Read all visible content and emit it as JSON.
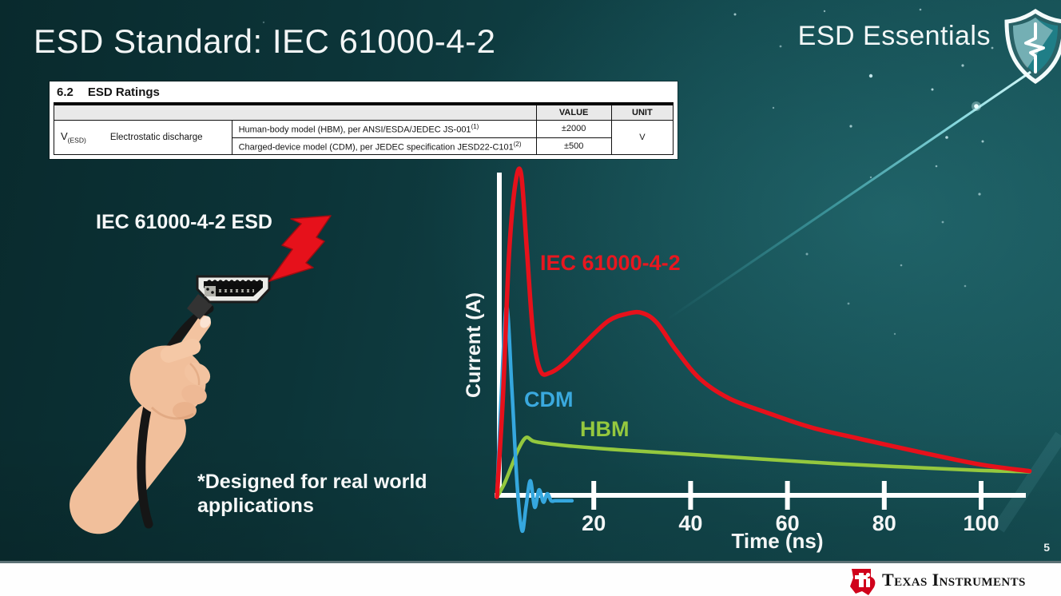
{
  "slide": {
    "title": "ESD Standard: IEC 61000-4-2",
    "page_number": "5",
    "series_badge": {
      "label": "ESD Essentials",
      "icon": "shield-pulse-icon"
    }
  },
  "ratings_table": {
    "section_label": "6.2",
    "section_title": "ESD Ratings",
    "columns": {
      "value": "VALUE",
      "unit": "UNIT"
    },
    "parameter": {
      "symbol": "V",
      "symbol_subscript": "(ESD)",
      "name": "Electrostatic discharge"
    },
    "rows": [
      {
        "description": "Human-body model (HBM), per ANSI/ESDA/JEDEC JS-001",
        "footnote_ref": "(1)",
        "value": "±2000"
      },
      {
        "description": "Charged-device model (CDM), per JEDEC specification JESD22-C101",
        "footnote_ref": "(2)",
        "value": "±500"
      }
    ],
    "unit": "V"
  },
  "illustration": {
    "caption": "IEC 61000-4-2 ESD",
    "note": "*Designed for real world applications",
    "elements": [
      "hand-holding-hdmi-connector",
      "red-lightning-bolt"
    ]
  },
  "chart_data": {
    "type": "line",
    "title": "",
    "xlabel": "Time (ns)",
    "ylabel": "Current (A)",
    "xlim": [
      0,
      110
    ],
    "x_ticks": [
      "20",
      "40",
      "60",
      "80",
      "100"
    ],
    "y_ticks": "none (unlabeled amplitude axis)",
    "grid": false,
    "legend_position": "inline curve labels",
    "units_note": "y values are relative amplitude (IEC peak normalized to 10)",
    "series": [
      {
        "name": "IEC 61000-4-2",
        "color": "#e6111b",
        "x": [
          0,
          1.2,
          2.5,
          3.8,
          5,
          6.2,
          7.5,
          9,
          11,
          14,
          18,
          23,
          27,
          30,
          33,
          37,
          42,
          48,
          56,
          65,
          75,
          87,
          100,
          110
        ],
        "y": [
          0,
          3,
          7.5,
          9.7,
          10,
          7.6,
          5.0,
          3.9,
          3.85,
          4.15,
          4.75,
          5.45,
          5.68,
          5.7,
          5.4,
          4.55,
          3.65,
          3.05,
          2.6,
          2.15,
          1.8,
          1.4,
          1.0,
          0.8
        ]
      },
      {
        "name": "CDM",
        "color": "#35a7de",
        "x": [
          0,
          0.9,
          2.0,
          3.1,
          4.2,
          5.2,
          6.0,
          6.9,
          7.8,
          8.7,
          9.6,
          10.4,
          11.2,
          12,
          13.5,
          15.5
        ],
        "y": [
          0,
          3.2,
          5.9,
          3.3,
          0.3,
          -1.05,
          -0.3,
          0.5,
          -0.32,
          0.22,
          -0.16,
          0.1,
          -0.12,
          -0.12,
          -0.12,
          -0.12
        ]
      },
      {
        "name": "HBM",
        "color": "#94c83e",
        "x": [
          0,
          1.5,
          3,
          4.5,
          6,
          7.5,
          10,
          15,
          25,
          40,
          55,
          70,
          85,
          100,
          110
        ],
        "y": [
          0,
          0.4,
          0.95,
          1.5,
          1.84,
          1.73,
          1.66,
          1.58,
          1.46,
          1.32,
          1.17,
          1.03,
          0.92,
          0.82,
          0.78
        ]
      }
    ]
  },
  "footer": {
    "brand": "Texas Instruments",
    "logo": "ti-logo",
    "logo_color": "#d0021b"
  },
  "colors": {
    "background_teal": "#11454a",
    "axis_white": "#ffffff",
    "iec_red": "#e6111b",
    "cdm_blue": "#35a7de",
    "hbm_green": "#94c83e"
  }
}
